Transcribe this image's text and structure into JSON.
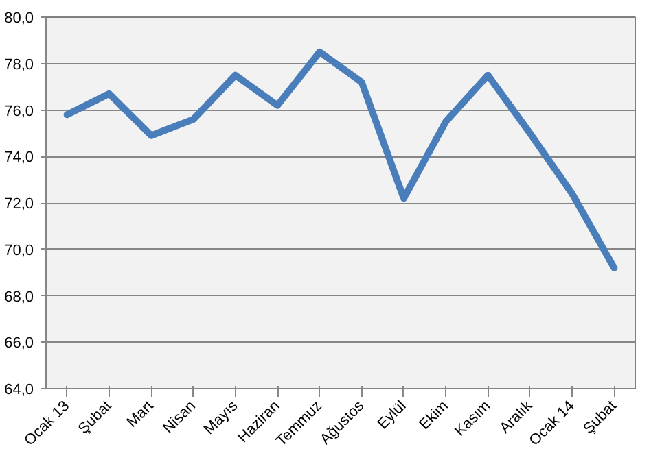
{
  "chart_data": {
    "type": "line",
    "categories": [
      "Ocak 13",
      "Şubat",
      "Mart",
      "Nisan",
      "Mayıs",
      "Haziran",
      "Temmuz",
      "Ağustos",
      "Eylül",
      "Ekim",
      "Kasım",
      "Aralık",
      "Ocak 14",
      "Şubat"
    ],
    "series": [
      {
        "color": "#4a7ebb",
        "values": [
          75.8,
          76.7,
          74.9,
          75.6,
          77.5,
          76.2,
          78.5,
          77.2,
          72.2,
          75.5,
          77.5,
          75.0,
          72.4,
          69.2
        ]
      }
    ],
    "ylim": [
      64,
      80
    ],
    "yticks": [
      {
        "value": 64,
        "label": "64,0"
      },
      {
        "value": 66,
        "label": "66,0"
      },
      {
        "value": 68,
        "label": "68,0"
      },
      {
        "value": 70,
        "label": "70,0"
      },
      {
        "value": 72,
        "label": "72,0"
      },
      {
        "value": 74,
        "label": "74,0"
      },
      {
        "value": 76,
        "label": "76,0"
      },
      {
        "value": 78,
        "label": "78,0"
      },
      {
        "value": 80,
        "label": "80,0"
      }
    ],
    "grid": "y",
    "marker": "none",
    "line_style": "solid"
  }
}
